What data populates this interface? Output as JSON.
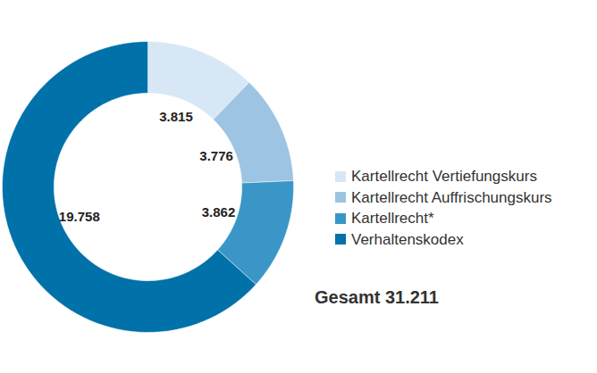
{
  "chart_data": {
    "type": "donut",
    "categories": [
      "Kartellrecht Vertiefungskurs",
      "Kartellrecht Auffrischungskurs",
      "Kartellrecht*",
      "Verhaltenskodex"
    ],
    "values": [
      3815,
      3776,
      3862,
      19758
    ],
    "value_labels": [
      "3.815",
      "3.776",
      "3.862",
      "19.758"
    ],
    "colors": [
      "#d7e7f5",
      "#9ec4e3",
      "#3a96c7",
      "#0071a9"
    ],
    "data_labels": true,
    "legend": "right",
    "annotations": [
      "Gesamt 31.211"
    ]
  }
}
